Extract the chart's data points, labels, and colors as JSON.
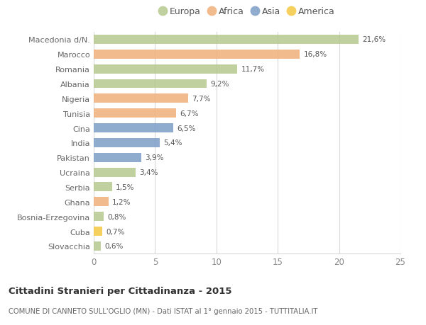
{
  "categories": [
    "Macedonia d/N.",
    "Marocco",
    "Romania",
    "Albania",
    "Nigeria",
    "Tunisia",
    "Cina",
    "India",
    "Pakistan",
    "Ucraina",
    "Serbia",
    "Ghana",
    "Bosnia-Erzegovina",
    "Cuba",
    "Slovacchia"
  ],
  "values": [
    21.6,
    16.8,
    11.7,
    9.2,
    7.7,
    6.7,
    6.5,
    5.4,
    3.9,
    3.4,
    1.5,
    1.2,
    0.8,
    0.7,
    0.6
  ],
  "labels": [
    "21,6%",
    "16,8%",
    "11,7%",
    "9,2%",
    "7,7%",
    "6,7%",
    "6,5%",
    "5,4%",
    "3,9%",
    "3,4%",
    "1,5%",
    "1,2%",
    "0,8%",
    "0,7%",
    "0,6%"
  ],
  "colors": [
    "#b5c98e",
    "#f0b07a",
    "#b5c98e",
    "#b5c98e",
    "#f0b07a",
    "#f0b07a",
    "#7b9ec7",
    "#7b9ec7",
    "#7b9ec7",
    "#b5c98e",
    "#b5c98e",
    "#f0b07a",
    "#b5c98e",
    "#f5c842",
    "#b5c98e"
  ],
  "legend_labels": [
    "Europa",
    "Africa",
    "Asia",
    "America"
  ],
  "legend_colors": [
    "#b5c98e",
    "#f0b07a",
    "#7b9ec7",
    "#f5c842"
  ],
  "title": "Cittadini Stranieri per Cittadinanza - 2015",
  "subtitle": "COMUNE DI CANNETO SULL'OGLIO (MN) - Dati ISTAT al 1° gennaio 2015 - TUTTITALIA.IT",
  "xlim": [
    0,
    25
  ],
  "xticks": [
    0,
    5,
    10,
    15,
    20,
    25
  ],
  "background_color": "#ffffff",
  "grid_color": "#d8d8d8"
}
